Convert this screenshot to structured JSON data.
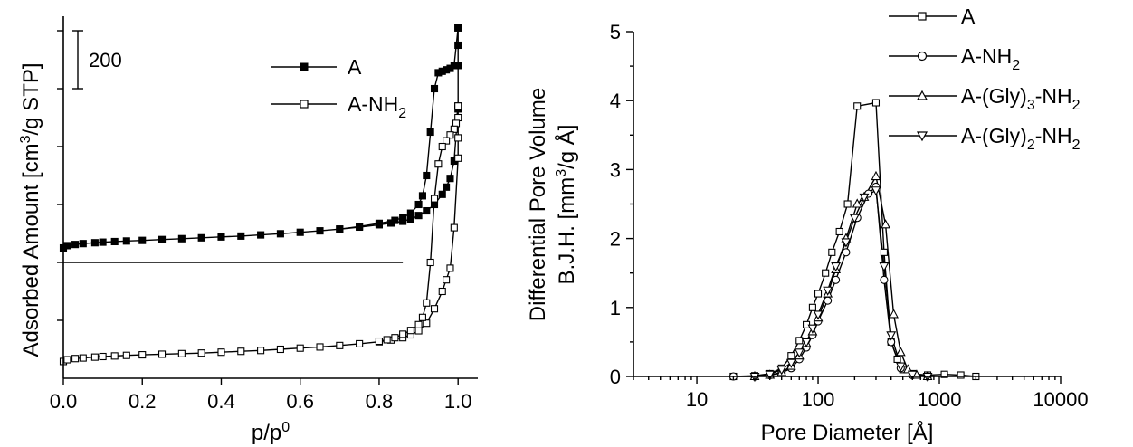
{
  "chart_data": [
    {
      "type": "line",
      "xlabel": "p/p0",
      "xlabel_parts": {
        "main": "p/p",
        "sup": "0"
      },
      "ylabel": "Adsorbed Amount [cm3/g STP]",
      "ylabel_parts": {
        "pre": "Adsorbed Amount [cm",
        "sup": "3",
        "post": "/g STP]"
      },
      "xlim": [
        0.0,
        1.05
      ],
      "ylim": [
        0,
        1250
      ],
      "x_ticks": [
        "0.0",
        "0.2",
        "0.4",
        "0.6",
        "0.8",
        "1.0"
      ],
      "x_tick_values": [
        0.0,
        0.2,
        0.4,
        0.6,
        0.8,
        1.0
      ],
      "y_tick_values": [
        200,
        400,
        600,
        800,
        1000,
        1200
      ],
      "y_tick_labels_shown": false,
      "scale_bar": {
        "label": "200",
        "value": 200,
        "from": 1000,
        "to": 1200
      },
      "reference_line": {
        "y": 400,
        "x_from": 0.0,
        "x_to": 0.86
      },
      "legend": {
        "placement": "top-right"
      },
      "series": [
        {
          "name": "A",
          "name_parts": {
            "pre": "A",
            "sub": ""
          },
          "marker": "square-filled",
          "adsorption": [
            [
              0.0,
              450
            ],
            [
              0.01,
              458
            ],
            [
              0.03,
              462
            ],
            [
              0.05,
              465
            ],
            [
              0.08,
              468
            ],
            [
              0.1,
              470
            ],
            [
              0.13,
              472
            ],
            [
              0.16,
              474
            ],
            [
              0.2,
              476
            ],
            [
              0.25,
              479
            ],
            [
              0.3,
              482
            ],
            [
              0.35,
              485
            ],
            [
              0.4,
              488
            ],
            [
              0.45,
              491
            ],
            [
              0.5,
              495
            ],
            [
              0.55,
              499
            ],
            [
              0.6,
              504
            ],
            [
              0.65,
              509
            ],
            [
              0.7,
              515
            ],
            [
              0.75,
              522
            ],
            [
              0.8,
              530
            ],
            [
              0.83,
              536
            ],
            [
              0.86,
              542
            ],
            [
              0.88,
              550
            ],
            [
              0.9,
              562
            ],
            [
              0.92,
              578
            ],
            [
              0.94,
              600
            ],
            [
              0.96,
              635
            ],
            [
              0.97,
              660
            ],
            [
              0.98,
              690
            ],
            [
              0.99,
              750
            ],
            [
              1.0,
              930
            ],
            [
              1.0,
              1080
            ],
            [
              1.0,
              1150
            ],
            [
              1.0,
              1210
            ]
          ],
          "desorption": [
            [
              1.0,
              1210
            ],
            [
              0.99,
              1080
            ],
            [
              0.98,
              1070
            ],
            [
              0.97,
              1065
            ],
            [
              0.96,
              1060
            ],
            [
              0.95,
              1055
            ],
            [
              0.94,
              1000
            ],
            [
              0.93,
              850
            ],
            [
              0.92,
              700
            ],
            [
              0.91,
              630
            ],
            [
              0.9,
              600
            ],
            [
              0.88,
              570
            ],
            [
              0.86,
              555
            ],
            [
              0.84,
              545
            ],
            [
              0.8,
              535
            ],
            [
              0.75,
              524
            ],
            [
              0.7,
              515
            ]
          ]
        },
        {
          "name": "A-NH2",
          "name_parts": {
            "pre": "A-NH",
            "sub": "2"
          },
          "marker": "square-open",
          "adsorption": [
            [
              0.0,
              58
            ],
            [
              0.01,
              64
            ],
            [
              0.03,
              68
            ],
            [
              0.05,
              70
            ],
            [
              0.08,
              73
            ],
            [
              0.1,
              75
            ],
            [
              0.13,
              77
            ],
            [
              0.16,
              79
            ],
            [
              0.2,
              81
            ],
            [
              0.25,
              83
            ],
            [
              0.3,
              85
            ],
            [
              0.35,
              87
            ],
            [
              0.4,
              90
            ],
            [
              0.45,
              93
            ],
            [
              0.5,
              96
            ],
            [
              0.55,
              100
            ],
            [
              0.6,
              104
            ],
            [
              0.65,
              108
            ],
            [
              0.7,
              113
            ],
            [
              0.75,
              119
            ],
            [
              0.8,
              126
            ],
            [
              0.83,
              132
            ],
            [
              0.86,
              140
            ],
            [
              0.88,
              150
            ],
            [
              0.9,
              164
            ],
            [
              0.92,
              190
            ],
            [
              0.94,
              240
            ],
            [
              0.96,
              300
            ],
            [
              0.97,
              340
            ],
            [
              0.98,
              380
            ],
            [
              0.99,
              520
            ],
            [
              1.0,
              760
            ],
            [
              1.0,
              830
            ],
            [
              1.0,
              900
            ],
            [
              1.0,
              940
            ]
          ],
          "desorption": [
            [
              1.0,
              940
            ],
            [
              0.995,
              880
            ],
            [
              0.99,
              860
            ],
            [
              0.98,
              840
            ],
            [
              0.97,
              820
            ],
            [
              0.96,
              800
            ],
            [
              0.95,
              740
            ],
            [
              0.94,
              620
            ],
            [
              0.93,
              400
            ],
            [
              0.92,
              260
            ],
            [
              0.91,
              210
            ],
            [
              0.9,
              185
            ],
            [
              0.88,
              165
            ],
            [
              0.86,
              152
            ],
            [
              0.84,
              140
            ],
            [
              0.82,
              133
            ],
            [
              0.8,
              128
            ]
          ]
        }
      ]
    },
    {
      "type": "line",
      "xlabel": "Pore Diameter [Å]",
      "ylabel_lines": [
        "Differential Pore Volume",
        "B.J.H. [mm3/g Å]"
      ],
      "ylabel_line2_parts": {
        "pre": "B.J.H. [mm",
        "sup": "3",
        "post": "/g Å]"
      },
      "x_scale": "log",
      "xlim": [
        3,
        10000
      ],
      "ylim": [
        0,
        5
      ],
      "x_ticks": [
        "10",
        "100",
        "1000",
        "10000"
      ],
      "x_tick_values": [
        10,
        100,
        1000,
        10000
      ],
      "y_ticks": [
        "0",
        "1",
        "2",
        "3",
        "4",
        "5"
      ],
      "y_tick_values": [
        0,
        1,
        2,
        3,
        4,
        5
      ],
      "legend": {
        "placement": "top-right"
      },
      "series": [
        {
          "name": "A",
          "name_parts": {
            "pre": "A",
            "sub": "",
            "post": ""
          },
          "marker": "square-open",
          "points": [
            [
              20,
              0.0
            ],
            [
              30,
              0.01
            ],
            [
              40,
              0.04
            ],
            [
              50,
              0.12
            ],
            [
              60,
              0.3
            ],
            [
              70,
              0.52
            ],
            [
              80,
              0.75
            ],
            [
              90,
              1.0
            ],
            [
              100,
              1.2
            ],
            [
              115,
              1.5
            ],
            [
              130,
              1.8
            ],
            [
              150,
              2.1
            ],
            [
              175,
              2.5
            ],
            [
              210,
              3.92
            ],
            [
              300,
              3.97
            ],
            [
              350,
              1.8
            ],
            [
              400,
              0.5
            ],
            [
              450,
              0.25
            ],
            [
              500,
              0.1
            ],
            [
              600,
              0.04
            ],
            [
              800,
              0.02
            ],
            [
              1100,
              0.03
            ],
            [
              1500,
              0.02
            ],
            [
              2000,
              0.0
            ]
          ]
        },
        {
          "name": "A-NH2",
          "name_parts": {
            "pre": "A-NH",
            "sub": "2",
            "post": ""
          },
          "marker": "circle-open",
          "points": [
            [
              20,
              0.0
            ],
            [
              30,
              0.0
            ],
            [
              40,
              0.02
            ],
            [
              50,
              0.05
            ],
            [
              60,
              0.12
            ],
            [
              70,
              0.25
            ],
            [
              80,
              0.42
            ],
            [
              90,
              0.6
            ],
            [
              100,
              0.8
            ],
            [
              120,
              1.1
            ],
            [
              140,
              1.4
            ],
            [
              170,
              1.8
            ],
            [
              210,
              2.3
            ],
            [
              260,
              2.65
            ],
            [
              300,
              2.75
            ],
            [
              350,
              1.4
            ],
            [
              400,
              0.5
            ],
            [
              480,
              0.12
            ],
            [
              600,
              0.02
            ],
            [
              800,
              0.0
            ]
          ]
        },
        {
          "name": "A-(Gly)3-NH2",
          "name_parts": {
            "pre": "A-(Gly)",
            "sub": "3",
            "post": "-NH",
            "sub2": "2"
          },
          "marker": "triangle-up-open",
          "points": [
            [
              30,
              0.0
            ],
            [
              40,
              0.02
            ],
            [
              50,
              0.06
            ],
            [
              60,
              0.15
            ],
            [
              70,
              0.3
            ],
            [
              80,
              0.48
            ],
            [
              90,
              0.65
            ],
            [
              100,
              0.85
            ],
            [
              120,
              1.2
            ],
            [
              140,
              1.55
            ],
            [
              170,
              2.0
            ],
            [
              210,
              2.5
            ],
            [
              240,
              2.6
            ],
            [
              300,
              2.9
            ],
            [
              360,
              2.2
            ],
            [
              420,
              0.9
            ],
            [
              480,
              0.35
            ],
            [
              550,
              0.1
            ],
            [
              650,
              0.02
            ],
            [
              800,
              0.0
            ]
          ]
        },
        {
          "name": "A-(Gly)2-NH2",
          "name_parts": {
            "pre": "A-(Gly)",
            "sub": "2",
            "post": "-NH",
            "sub2": "2"
          },
          "marker": "triangle-down-open",
          "points": [
            [
              30,
              0.0
            ],
            [
              40,
              0.03
            ],
            [
              50,
              0.1
            ],
            [
              60,
              0.2
            ],
            [
              70,
              0.35
            ],
            [
              80,
              0.5
            ],
            [
              90,
              0.7
            ],
            [
              100,
              0.9
            ],
            [
              120,
              1.25
            ],
            [
              140,
              1.6
            ],
            [
              170,
              1.95
            ],
            [
              200,
              2.3
            ],
            [
              240,
              2.6
            ],
            [
              300,
              2.7
            ],
            [
              350,
              1.6
            ],
            [
              400,
              0.6
            ],
            [
              480,
              0.15
            ],
            [
              600,
              0.03
            ],
            [
              800,
              0.0
            ]
          ]
        }
      ]
    }
  ]
}
